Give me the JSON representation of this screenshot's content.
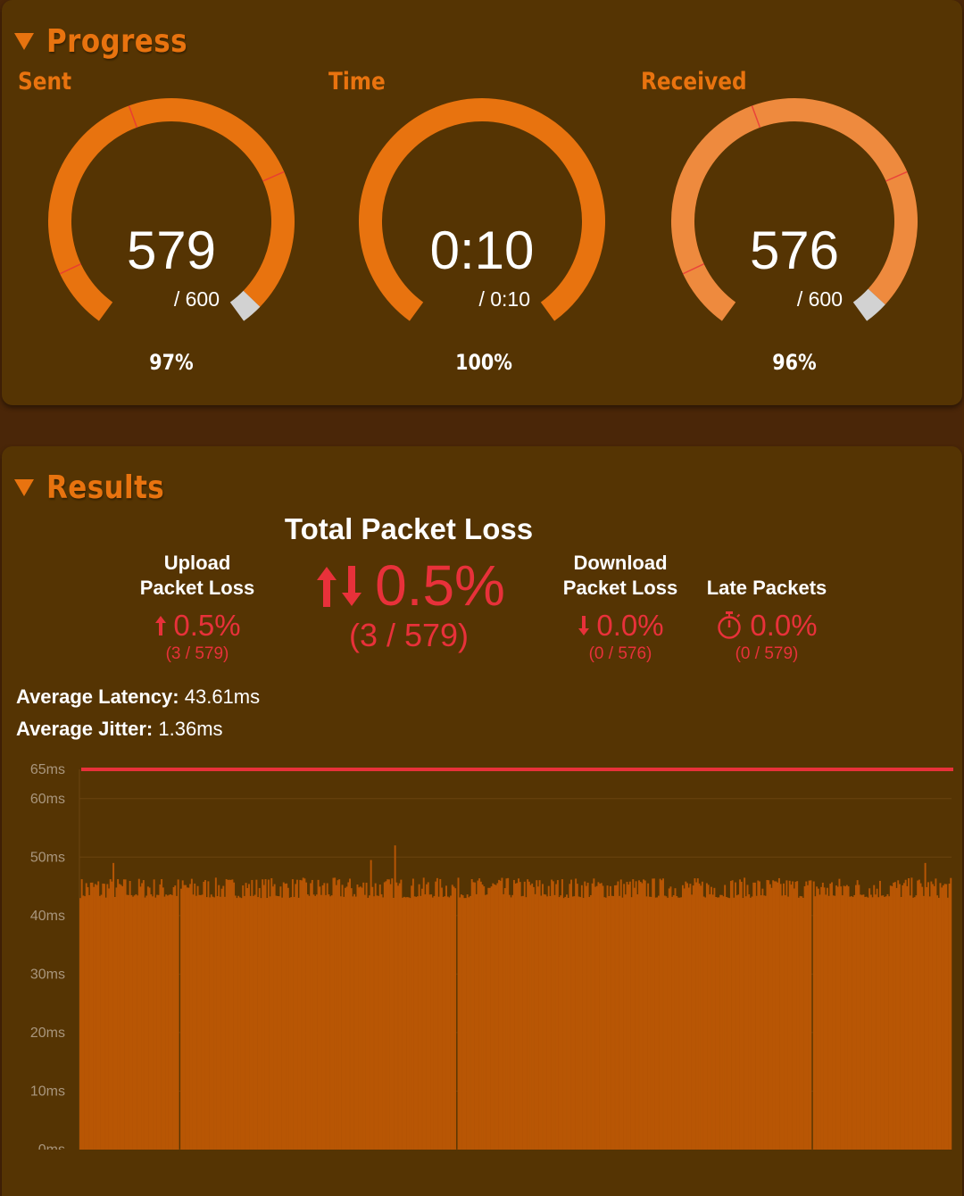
{
  "progress": {
    "title": "Progress",
    "gauges": [
      {
        "id": "sent",
        "label": "Sent",
        "value": "579",
        "total": "/ 600",
        "percent": "97%",
        "fraction": 0.965,
        "loss_marks": [
          0.1,
          0.43,
          0.73
        ],
        "color": "#e8730f"
      },
      {
        "id": "time",
        "label": "Time",
        "value": "0:10",
        "total": "/ 0:10",
        "percent": "100%",
        "fraction": 1.0,
        "loss_marks": [],
        "color": "#e8730f"
      },
      {
        "id": "received",
        "label": "Received",
        "value": "576",
        "total": "/ 600",
        "percent": "96%",
        "fraction": 0.96,
        "loss_marks": [
          0.1,
          0.43,
          0.73
        ],
        "color": "#ee8a3e"
      }
    ]
  },
  "results": {
    "title": "Results",
    "total": {
      "title": "Total Packet Loss",
      "icon": "updown-arrows-icon",
      "value": "0.5%",
      "detail": "(3 / 579)"
    },
    "upload": {
      "title_line1": "Upload",
      "title_line2": "Packet Loss",
      "icon": "up-arrow-icon",
      "value": "0.5%",
      "detail": "(3 / 579)"
    },
    "download": {
      "title_line1": "Download",
      "title_line2": "Packet Loss",
      "icon": "down-arrow-icon",
      "value": "0.0%",
      "detail": "(0 / 576)"
    },
    "late": {
      "title": "Late Packets",
      "icon": "stopwatch-icon",
      "value": "0.0%",
      "detail": "(0 / 579)"
    },
    "avg_latency_label": "Average Latency:",
    "avg_latency_value": "43.61ms",
    "avg_jitter_label": "Average Jitter:",
    "avg_jitter_value": "1.36ms"
  },
  "colors": {
    "accent": "#e8730f",
    "loss": "#e8313a",
    "bar": "#b85604",
    "threshold": "#e8313a"
  },
  "chart_data": {
    "type": "bar",
    "title": "",
    "xlabel": "",
    "ylabel": "",
    "y_ticks": [
      "0ms",
      "10ms",
      "20ms",
      "30ms",
      "40ms",
      "50ms",
      "60ms",
      "65ms"
    ],
    "ylim": [
      0,
      65
    ],
    "threshold": 65,
    "n_packets": 579,
    "baseline_ms": 43,
    "typical_peak_ms": 46.5,
    "max_ms": 52,
    "lost_packet_indices": [
      66,
      250,
      486
    ],
    "spike_packets": [
      {
        "index": 193,
        "ms": 49.5
      },
      {
        "index": 209,
        "ms": 52
      },
      {
        "index": 22,
        "ms": 49
      },
      {
        "index": 561,
        "ms": 49
      }
    ]
  }
}
